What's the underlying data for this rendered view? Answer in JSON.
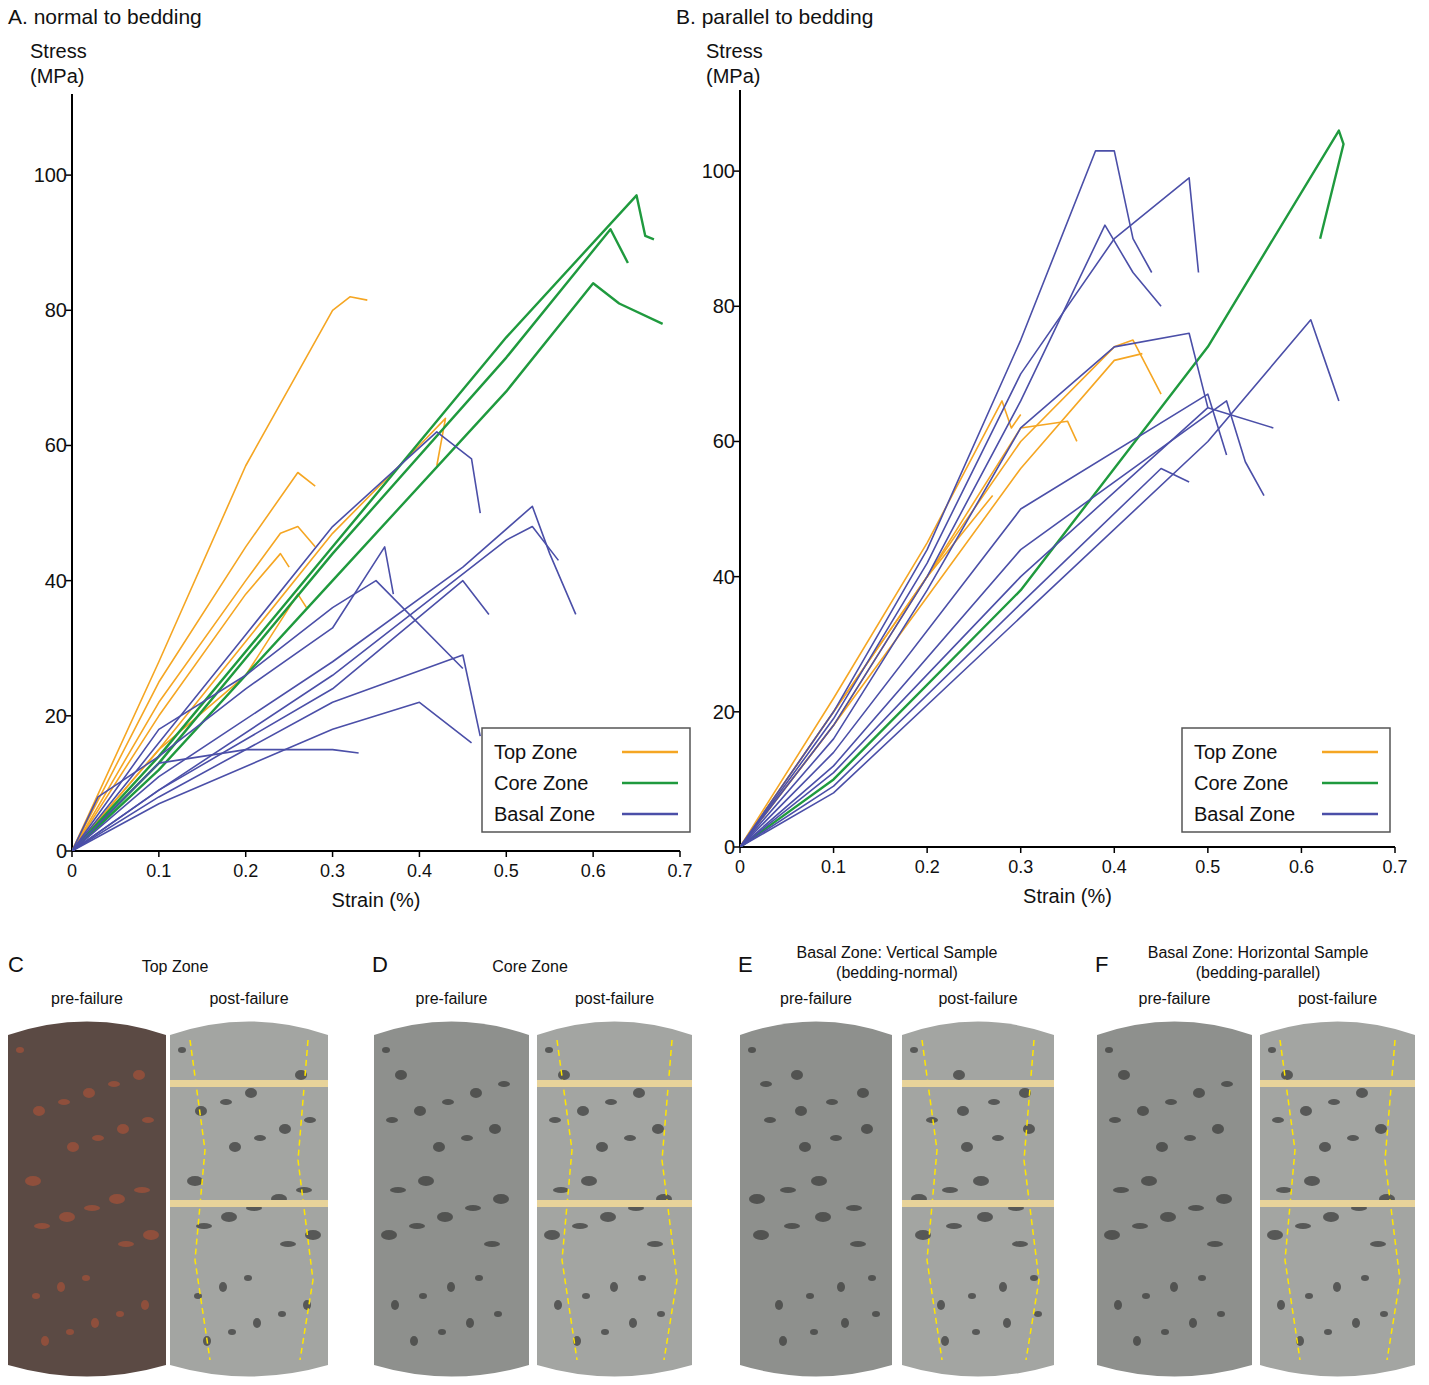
{
  "chart_data": [
    {
      "type": "line",
      "title": "A. normal to bedding",
      "y_label": [
        "Stress",
        "(MPa)"
      ],
      "x_label": "Strain (%)",
      "xlim": [
        0,
        0.7
      ],
      "ylim": [
        0,
        112
      ],
      "xticks": [
        0,
        0.1,
        0.2,
        0.3,
        0.4,
        0.5,
        0.6,
        0.7
      ],
      "yticks": [
        0,
        20,
        40,
        60,
        80,
        100
      ],
      "legend": "lower right",
      "grid": false,
      "series": [
        {
          "name": "Top Zone",
          "color": "#f5a623",
          "curves": [
            {
              "x": [
                0,
                0.1,
                0.2,
                0.3,
                0.32,
                0.34
              ],
              "values": [
                0,
                28,
                57,
                80,
                82,
                81.5
              ]
            },
            {
              "x": [
                0,
                0.1,
                0.2,
                0.26,
                0.28
              ],
              "values": [
                0,
                25,
                45,
                56,
                54
              ]
            },
            {
              "x": [
                0,
                0.1,
                0.2,
                0.24,
                0.26,
                0.28
              ],
              "values": [
                0,
                22,
                40,
                47,
                48,
                45
              ]
            },
            {
              "x": [
                0,
                0.1,
                0.2,
                0.24,
                0.25
              ],
              "values": [
                0,
                20,
                38,
                44,
                42
              ]
            },
            {
              "x": [
                0,
                0.1,
                0.2,
                0.26,
                0.27
              ],
              "values": [
                0,
                15,
                26,
                38,
                36
              ]
            },
            {
              "x": [
                0,
                0.1,
                0.2,
                0.3,
                0.4,
                0.43,
                0.42
              ],
              "values": [
                0,
                15,
                31,
                47,
                60,
                64,
                57
              ]
            }
          ]
        },
        {
          "name": "Core Zone",
          "color": "#1f9a3e",
          "curves": [
            {
              "x": [
                0,
                0.1,
                0.3,
                0.5,
                0.65,
                0.66,
                0.67
              ],
              "values": [
                0,
                14,
                45,
                76,
                97,
                91,
                90.5
              ]
            },
            {
              "x": [
                0,
                0.1,
                0.3,
                0.5,
                0.62,
                0.64
              ],
              "values": [
                0,
                13,
                44,
                73,
                92,
                87
              ]
            },
            {
              "x": [
                0,
                0.1,
                0.3,
                0.5,
                0.6,
                0.63,
                0.68
              ],
              "values": [
                0,
                12,
                40,
                68,
                84,
                81,
                78
              ]
            }
          ]
        },
        {
          "name": "Basal Zone",
          "color": "#4b4fa8",
          "curves": [
            {
              "x": [
                0,
                0.1,
                0.2,
                0.3,
                0.42,
                0.46,
                0.47
              ],
              "values": [
                0,
                16,
                32,
                48,
                62,
                58,
                50
              ]
            },
            {
              "x": [
                0,
                0.03,
                0.1,
                0.2,
                0.3,
                0.36,
                0.37
              ],
              "values": [
                0,
                8,
                14,
                24,
                33,
                45,
                38
              ]
            },
            {
              "x": [
                0,
                0.1,
                0.3,
                0.45,
                0.53,
                0.55,
                0.58
              ],
              "values": [
                0,
                11,
                28,
                42,
                51,
                44,
                35
              ]
            },
            {
              "x": [
                0,
                0.1,
                0.3,
                0.5,
                0.53,
                0.56
              ],
              "values": [
                0,
                9,
                26,
                46,
                48,
                43
              ]
            },
            {
              "x": [
                0,
                0.1,
                0.3,
                0.45,
                0.48
              ],
              "values": [
                0,
                9,
                24,
                40,
                35
              ]
            },
            {
              "x": [
                0,
                0.1,
                0.3,
                0.45,
                0.47
              ],
              "values": [
                0,
                8,
                22,
                29,
                17
              ]
            },
            {
              "x": [
                0,
                0.1,
                0.2,
                0.3,
                0.33
              ],
              "values": [
                0,
                13,
                15,
                15,
                14.5
              ]
            },
            {
              "x": [
                0,
                0.1,
                0.3,
                0.4,
                0.46
              ],
              "values": [
                0,
                7,
                18,
                22,
                16
              ]
            },
            {
              "x": [
                0,
                0.1,
                0.2,
                0.3,
                0.35,
                0.45
              ],
              "values": [
                0,
                18,
                26,
                36,
                40,
                27
              ]
            }
          ]
        }
      ]
    },
    {
      "type": "line",
      "title": "B. parallel to bedding",
      "y_label": [
        "Stress",
        "(MPa)"
      ],
      "x_label": "Strain (%)",
      "xlim": [
        0,
        0.7
      ],
      "ylim": [
        0,
        112
      ],
      "xticks": [
        0,
        0.1,
        0.2,
        0.3,
        0.4,
        0.5,
        0.6,
        0.7
      ],
      "yticks": [
        0,
        20,
        40,
        60,
        80,
        100
      ],
      "legend": "lower right",
      "grid": false,
      "series": [
        {
          "name": "Top Zone",
          "color": "#f5a623",
          "curves": [
            {
              "x": [
                0,
                0.1,
                0.2,
                0.28,
                0.29,
                0.3
              ],
              "values": [
                0,
                22,
                45,
                66,
                62,
                64
              ]
            },
            {
              "x": [
                0,
                0.1,
                0.2,
                0.27
              ],
              "values": [
                0,
                20,
                40,
                52
              ]
            },
            {
              "x": [
                0,
                0.1,
                0.2,
                0.3,
                0.4,
                0.42,
                0.45
              ],
              "values": [
                0,
                20,
                40,
                60,
                74,
                75,
                67
              ]
            },
            {
              "x": [
                0,
                0.1,
                0.2,
                0.3,
                0.4,
                0.43
              ],
              "values": [
                0,
                18,
                37,
                56,
                72,
                73
              ]
            },
            {
              "x": [
                0,
                0.1,
                0.2,
                0.3,
                0.35,
                0.36
              ],
              "values": [
                0,
                18,
                40,
                62,
                63,
                60
              ]
            }
          ]
        },
        {
          "name": "Core Zone",
          "color": "#1f9a3e",
          "curves": [
            {
              "x": [
                0,
                0.1,
                0.3,
                0.5,
                0.64,
                0.645,
                0.62
              ],
              "values": [
                0,
                10,
                38,
                74,
                106,
                104,
                90
              ]
            }
          ]
        },
        {
          "name": "Basal Zone",
          "color": "#4b4fa8",
          "curves": [
            {
              "x": [
                0,
                0.1,
                0.2,
                0.3,
                0.38,
                0.4,
                0.42,
                0.44
              ],
              "values": [
                0,
                20,
                44,
                75,
                103,
                103,
                90,
                85
              ]
            },
            {
              "x": [
                0,
                0.1,
                0.2,
                0.3,
                0.4,
                0.48,
                0.49
              ],
              "values": [
                0,
                19,
                42,
                70,
                90,
                99,
                85
              ]
            },
            {
              "x": [
                0,
                0.1,
                0.2,
                0.3,
                0.39,
                0.42,
                0.45
              ],
              "values": [
                0,
                18,
                40,
                66,
                92,
                85,
                80
              ]
            },
            {
              "x": [
                0,
                0.1,
                0.2,
                0.3,
                0.4,
                0.48,
                0.5
              ],
              "values": [
                0,
                16,
                38,
                62,
                74,
                76,
                65
              ]
            },
            {
              "x": [
                0,
                0.1,
                0.3,
                0.5,
                0.52
              ],
              "values": [
                0,
                14,
                50,
                67,
                58
              ]
            },
            {
              "x": [
                0,
                0.1,
                0.3,
                0.52,
                0.54,
                0.56
              ],
              "values": [
                0,
                12,
                44,
                66,
                57,
                52
              ]
            },
            {
              "x": [
                0,
                0.1,
                0.3,
                0.5,
                0.57
              ],
              "values": [
                0,
                11,
                40,
                65,
                62
              ]
            },
            {
              "x": [
                0,
                0.1,
                0.3,
                0.5,
                0.61,
                0.63,
                0.64
              ],
              "values": [
                0,
                8,
                34,
                60,
                78,
                70,
                66
              ]
            },
            {
              "x": [
                0,
                0.1,
                0.3,
                0.45,
                0.48
              ],
              "values": [
                0,
                9,
                36,
                56,
                54
              ]
            }
          ]
        }
      ]
    }
  ],
  "photo_panels": [
    {
      "letter": "C",
      "title": "Top Zone",
      "note": null,
      "pre": "pre-failure",
      "post": "post-failure"
    },
    {
      "letter": "D",
      "title": "Core Zone",
      "note": null,
      "pre": "pre-failure",
      "post": "post-failure"
    },
    {
      "letter": "E",
      "title": "Basal Zone: Vertical Sample",
      "note": "(bedding-normal)",
      "pre": "pre-failure",
      "post": "post-failure"
    },
    {
      "letter": "F",
      "title": "Basal Zone: Horizontal Sample",
      "note": "(bedding-parallel)",
      "pre": "pre-failure",
      "post": "post-failure"
    }
  ]
}
